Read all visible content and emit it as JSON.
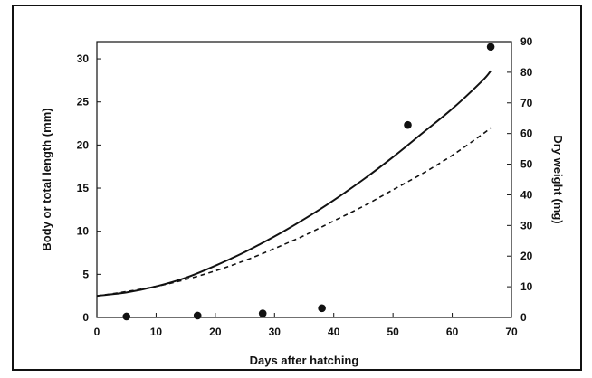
{
  "chart_data": {
    "type": "line",
    "xlabel": "Days after hatching",
    "ylabel": "Body or total length (mm)",
    "y2label": "Dry weight (mg)",
    "xlim": [
      0,
      70
    ],
    "ylim": [
      0,
      32
    ],
    "y2lim": [
      0,
      90
    ],
    "x_ticks": [
      0,
      10,
      20,
      30,
      40,
      50,
      60,
      70
    ],
    "y_ticks": [
      0,
      5,
      10,
      15,
      20,
      25,
      30
    ],
    "y2_ticks": [
      0,
      10,
      20,
      30,
      40,
      50,
      60,
      70,
      80,
      90
    ],
    "grid": false,
    "series": [
      {
        "style": "solid",
        "axis": "left",
        "x": [
          0,
          5,
          10,
          15,
          20,
          25,
          30,
          35,
          40,
          45,
          50,
          55,
          60,
          65,
          66.5
        ],
        "y": [
          2.5,
          2.9,
          3.6,
          4.6,
          6.0,
          7.6,
          9.4,
          11.4,
          13.6,
          16.0,
          18.6,
          21.4,
          24.2,
          27.4,
          28.6
        ]
      },
      {
        "style": "dashed",
        "axis": "left",
        "x": [
          0,
          5,
          10,
          15,
          20,
          25,
          30,
          35,
          40,
          45,
          50,
          55,
          60,
          65,
          66.5
        ],
        "y": [
          2.5,
          3.0,
          3.6,
          4.4,
          5.4,
          6.6,
          8.0,
          9.5,
          11.2,
          12.9,
          14.8,
          16.7,
          18.8,
          21.2,
          22.0
        ]
      },
      {
        "style": "points",
        "axis": "right",
        "x": [
          5,
          17,
          28,
          38,
          52.5,
          66.5
        ],
        "y": [
          0.3,
          0.6,
          1.3,
          3.0,
          62.8,
          88.3
        ]
      }
    ]
  }
}
